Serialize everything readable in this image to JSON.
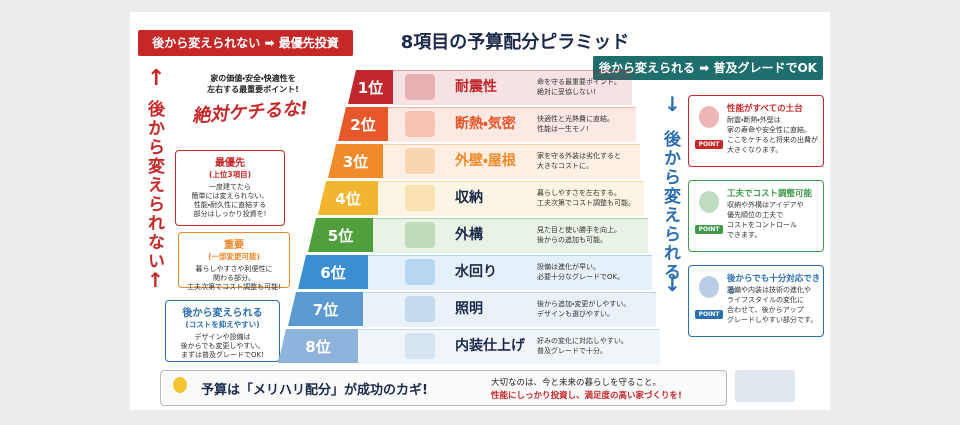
{
  "header": {
    "left_banner": "後から変えられない ➡ 最優先投資",
    "title": "8項目の予算配分ピラミッド",
    "right_banner": "後から変えられる ➡ 普及グレードでOK"
  },
  "left_side": {
    "vertical_label": "後から変えられない",
    "callout": "家の価値・安全・快適性を\n左右する最重要ポイント!",
    "slogan": "絶対ケチるな!",
    "notes": [
      {
        "title": "最優先",
        "subtitle": "(上位3項目)",
        "text": "一度建てたら\n簡単には変えられない、\n性能・耐久性に直結する\n部分はしっかり投資を!",
        "color": "#c62828"
      },
      {
        "title": "重要",
        "subtitle": "(一部変更可能)",
        "text": "暮らしやすさや利便性に\n関わる部分。\n工夫次第でコスト調整も可能!",
        "color": "#e8892a"
      },
      {
        "title": "後から変えられる",
        "subtitle": "(コストを抑えやすい)",
        "text": "デザインや設備は\n後からでも変更しやすい。\nまずは普及グレードでOK!",
        "color": "#2a6fb0"
      }
    ]
  },
  "pyramid": [
    {
      "rank": "1位",
      "title": "耐震性",
      "text": "命を守る最重要ポイント。\n絶対に妥協しない!",
      "color": "#c0282d"
    },
    {
      "rank": "2位",
      "title": "断熱・気密",
      "text": "快適性と光熱費に直結。\n性能は一生モノ!",
      "color": "#e8572a"
    },
    {
      "rank": "3位",
      "title": "外壁・屋根",
      "text": "家を守る外装は劣化すると\n大きなコストに。",
      "color": "#f08a2a"
    },
    {
      "rank": "4位",
      "title": "収納",
      "text": "暮らしやすさを左右する。\n工夫次第でコスト調整も可能。",
      "color": "#f2b530"
    },
    {
      "rank": "5位",
      "title": "外構",
      "text": "見た目と使い勝手を向上。\n後からの追加も可能。",
      "color": "#4fa03c"
    },
    {
      "rank": "6位",
      "title": "水回り",
      "text": "設備は進化が早い。\n必要十分なグレードでOK。",
      "color": "#3b8fd0"
    },
    {
      "rank": "7位",
      "title": "照明",
      "text": "後から追加・変更がしやすい。\nデザインも選びやすい。",
      "color": "#5a9ad0"
    },
    {
      "rank": "8位",
      "title": "内装仕上げ",
      "text": "好みの変化に対応しやすい。\n普及グレードで十分。",
      "color": "#8fb4db"
    }
  ],
  "right_side": {
    "vertical_label": "後から変えられる",
    "cards": [
      {
        "title": "性能がすべての土台",
        "text": "耐震・断熱・外壁は\n家の寿命や安全性に直結。\nここをケチると将来の出費が\n大きくなります。",
        "badge": "POINT",
        "color": "#c62828"
      },
      {
        "title": "工夫でコスト調整可能",
        "text": "収納や外構はアイデアや\n優先順位の工夫で\nコストをコントロール\nできます。",
        "badge": "POINT",
        "color": "#3f9a4a"
      },
      {
        "title": "後からでも十分対応できる",
        "text": "設備や内装は技術の進化や\nライフスタイルの変化に\n合わせて、後からアップ\nグレードしやすい部分です。",
        "badge": "POINT",
        "color": "#2a6fb0"
      }
    ]
  },
  "footer": {
    "title": "予算は「メリハリ配分」が成功のカギ!",
    "line1": "大切なのは、今と未来の暮らしを守ること。",
    "line2": "性能にしっかり投資し、満足度の高い家づくりを!"
  }
}
